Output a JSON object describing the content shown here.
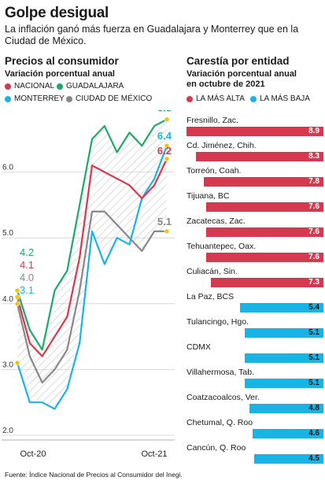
{
  "header": {
    "title": "Golpe desigual",
    "subtitle": "La inflación ganó más fuerza en Guadalajara y Monterrey que en la Ciudad de México."
  },
  "left": {
    "title": "Precios al consumidor",
    "subtitle": "Variación porcentual anual"
  },
  "right": {
    "title": "Carestía por entidad",
    "subtitle_line1": "Variación porcentual anual",
    "subtitle_line2": "en octubre de 2021",
    "legend_high": "LA MÁS ALTA",
    "legend_low": "LA MÁS BAJA"
  },
  "colors": {
    "nacional": "#d6394f",
    "guadalajara": "#1fa86b",
    "monterrey": "#1ab3e6",
    "cdmx": "#888888",
    "high": "#d6394f",
    "low": "#1ab3e6"
  },
  "footer": {
    "source": "Fuente: Índice Nacional de Precios al Consumidor del Inegi."
  },
  "chart_data": [
    {
      "type": "line",
      "title": "Precios al consumidor",
      "ylabel": "Variación porcentual anual",
      "ylim": [
        2.0,
        7.0
      ],
      "yticks": [
        "2.0",
        "3.0",
        "4.0",
        "5.0",
        "6.0"
      ],
      "xtick_labels": [
        "Oct-20",
        "Oct-21"
      ],
      "start_labels": [
        "4.2",
        "4.1",
        "4.0",
        "3.1"
      ],
      "end_labels": [
        "6.8",
        "6.4",
        "6.2",
        "5.1"
      ],
      "series": [
        {
          "name": "NACIONAL",
          "values": [
            4.1,
            3.4,
            3.2,
            3.5,
            3.8,
            4.7,
            6.1,
            6.0,
            5.9,
            5.8,
            5.6,
            5.8,
            6.2
          ]
        },
        {
          "name": "GUADALAJARA",
          "values": [
            4.2,
            3.6,
            3.3,
            4.2,
            4.5,
            5.5,
            6.5,
            6.7,
            6.3,
            6.6,
            6.4,
            6.7,
            6.8
          ]
        },
        {
          "name": "MONTERREY",
          "values": [
            3.1,
            2.5,
            2.5,
            2.4,
            2.7,
            3.4,
            5.1,
            4.6,
            5.0,
            4.9,
            5.6,
            5.9,
            6.4
          ]
        },
        {
          "name": "CIUDAD DE MÉXICO",
          "values": [
            4.0,
            3.2,
            2.8,
            3.0,
            3.3,
            4.2,
            5.4,
            5.4,
            5.2,
            5.0,
            4.8,
            5.1,
            5.1
          ]
        }
      ]
    },
    {
      "type": "bar",
      "title": "Carestía por entidad",
      "categories": [
        "Fresnillo, Zac.",
        "Cd. Jiménez, Chih.",
        "Torreón, Coah.",
        "Tijuana, BC",
        "Zacatecas, Zac.",
        "Tehuantepec, Oax.",
        "Culiacán, Sin.",
        "La Paz, BCS",
        "Tulancingo, Hgo.",
        "CDMX",
        "Villahermosa, Tab.",
        "Coatzacoalcos, Ver.",
        "Chetumal, Q. Roo",
        "Cancún, Q. Roo"
      ],
      "values": [
        8.9,
        8.3,
        7.8,
        7.6,
        7.6,
        7.6,
        7.3,
        5.4,
        5.1,
        5.1,
        5.1,
        4.8,
        4.6,
        4.5
      ],
      "labels": [
        "8.9",
        "8.3",
        "7.8",
        "7.6",
        "7.6",
        "7.6",
        "7.3",
        "5.4",
        "5.1",
        "5.1",
        "5.1",
        "4.8",
        "4.6",
        "4.5"
      ],
      "groups": [
        "high",
        "high",
        "high",
        "high",
        "high",
        "high",
        "high",
        "low",
        "low",
        "low",
        "low",
        "low",
        "low",
        "low"
      ],
      "xlim": [
        0,
        8.9
      ]
    }
  ]
}
